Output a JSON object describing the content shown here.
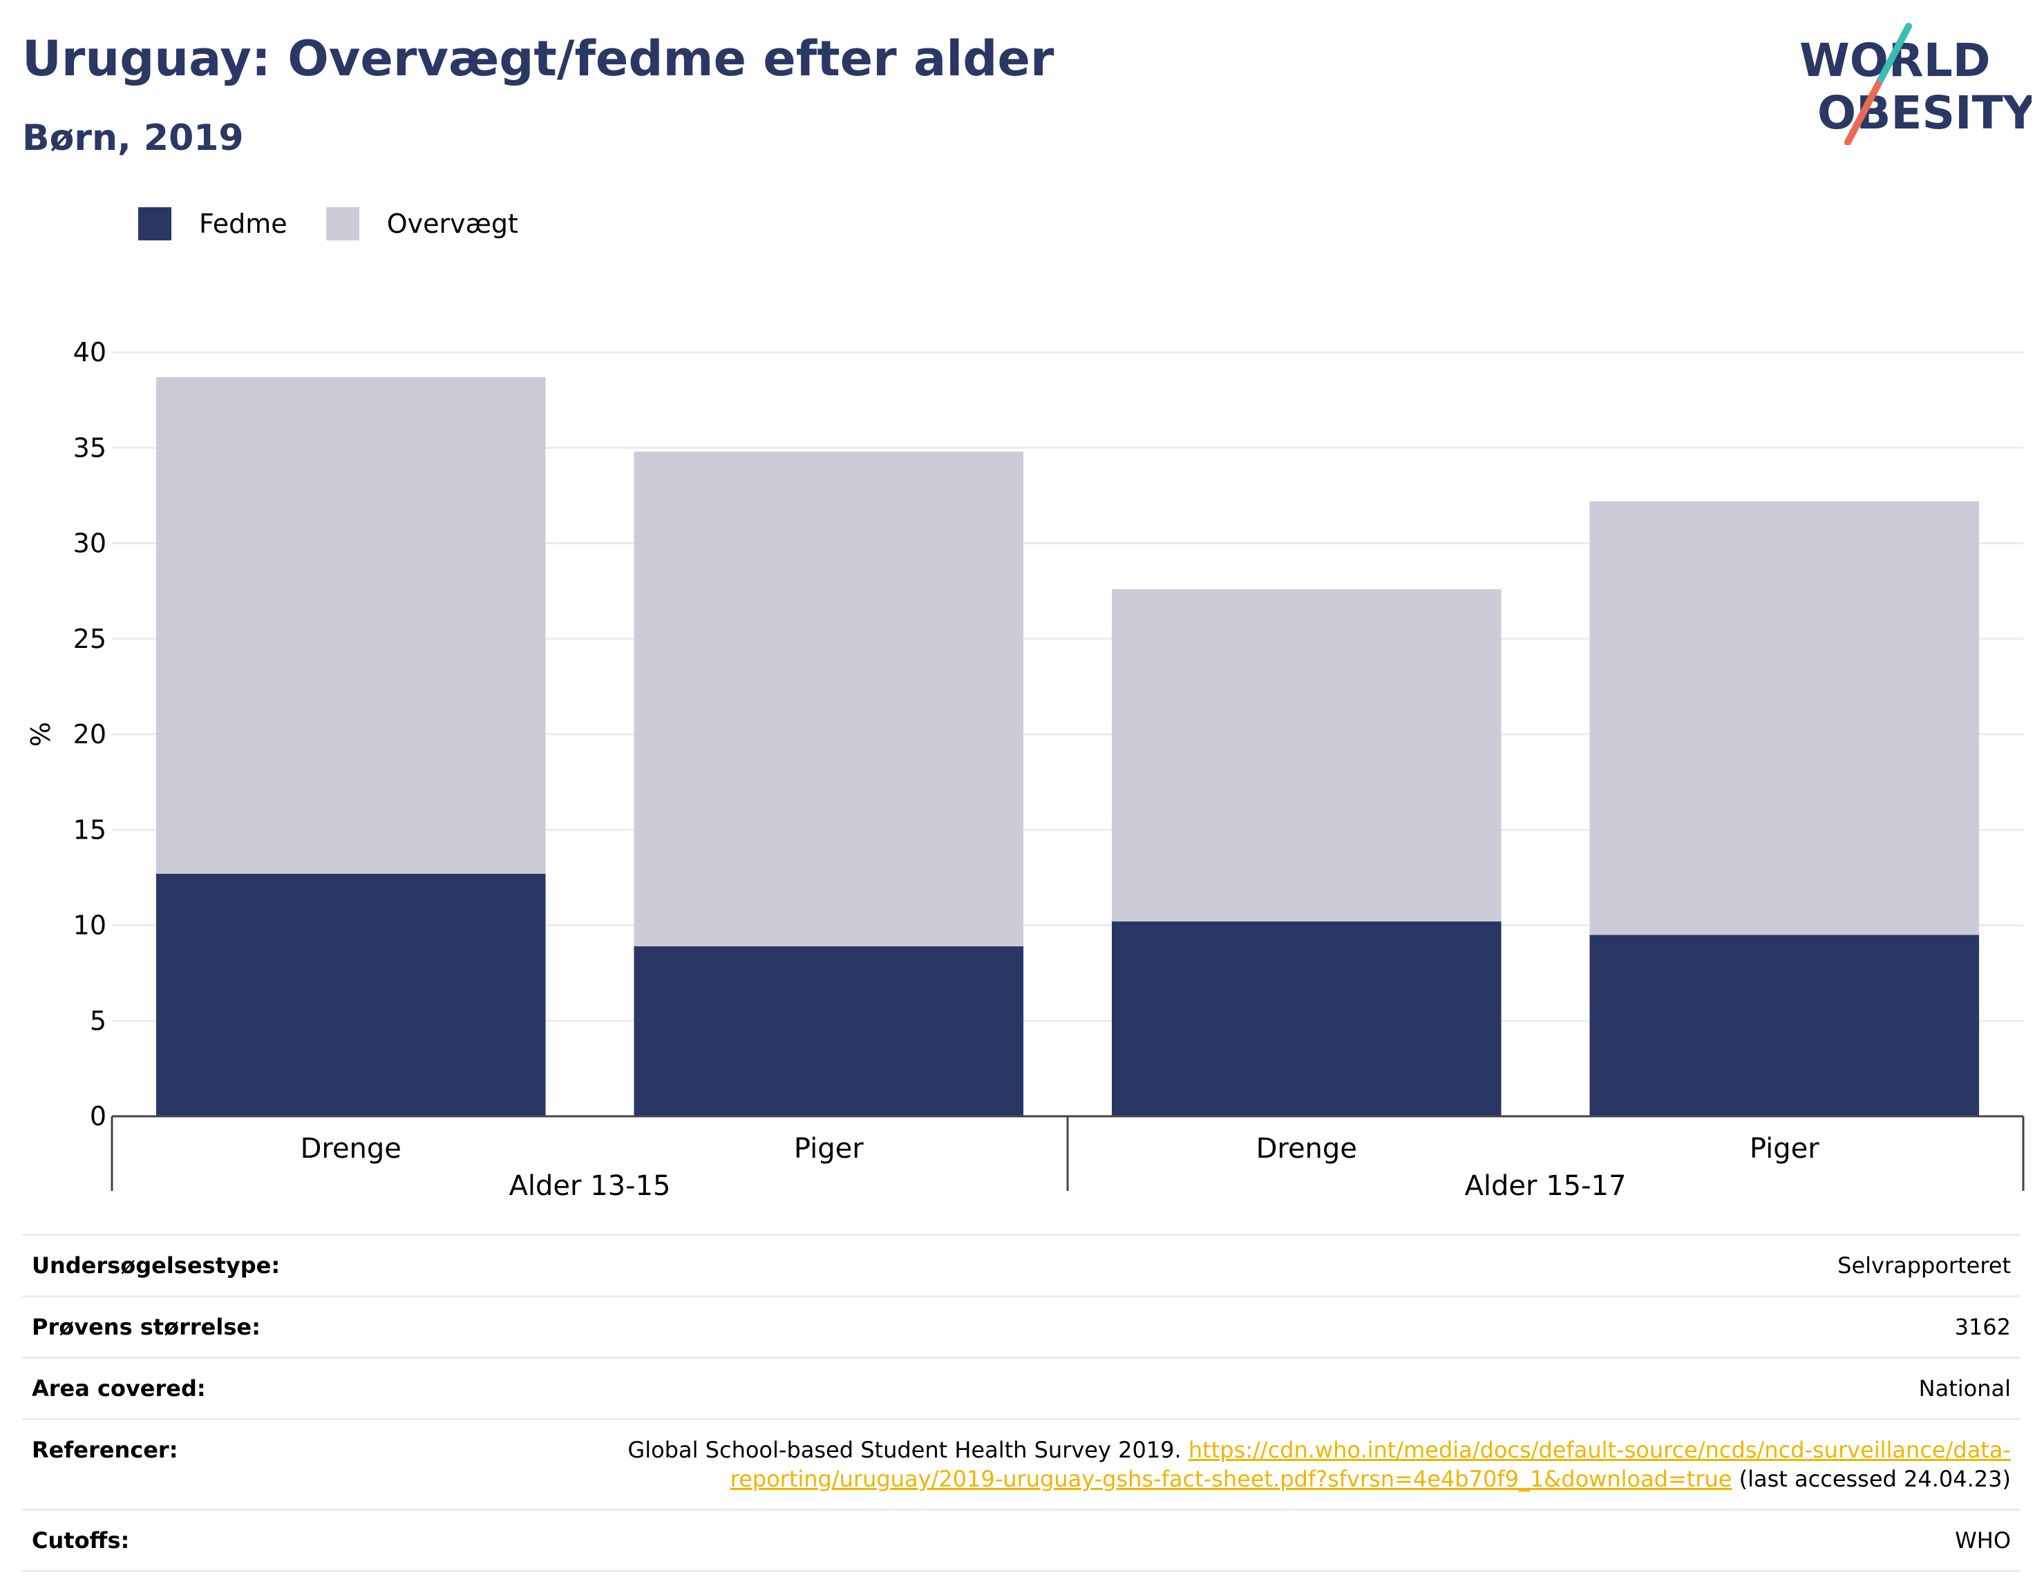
{
  "header": {
    "title": "Uruguay: Overvægt/fedme efter alder",
    "subtitle": "Børn, 2019"
  },
  "logo": {
    "line1": "WORLD",
    "line2": "OBESITY"
  },
  "colors": {
    "fedme": "#2a3765",
    "overvaegt": "#cbccd8",
    "title": "#2b3764",
    "link": "#f0b400",
    "logo_teal": "#3cbcb4",
    "logo_coral": "#ec6a52"
  },
  "chart_data": {
    "type": "bar",
    "stacked": true,
    "ylabel": "%",
    "ylim": [
      0,
      40
    ],
    "yticks": [
      0,
      5,
      10,
      15,
      20,
      25,
      30,
      35,
      40
    ],
    "grid": true,
    "legend_placement": "top-left",
    "groups": [
      "Alder 13-15",
      "Alder 15-17"
    ],
    "categories": [
      "Drenge",
      "Piger",
      "Drenge",
      "Piger"
    ],
    "category_group": [
      0,
      0,
      1,
      1
    ],
    "series": [
      {
        "name": "Fedme",
        "values": [
          12.7,
          8.9,
          10.2,
          9.5
        ]
      },
      {
        "name": "Overvægt",
        "values": [
          26.0,
          25.9,
          17.4,
          22.7
        ]
      }
    ]
  },
  "table": {
    "rows": [
      {
        "key": "Undersøgelsestype:",
        "value": "Selvrapporteret"
      },
      {
        "key": "Prøvens størrelse:",
        "value": "3162"
      },
      {
        "key": "Area covered:",
        "value": "National"
      },
      {
        "key": "Referencer:",
        "value_prefix": "Global School-based Student Health Survey 2019. ",
        "link": "https://cdn.who.int/media/docs/default-source/ncds/ncd-surveillance/data-reporting/uruguay/2019-uruguay-gshs-fact-sheet.pdf?sfvrsn=4e4b70f9_1&download=true",
        "value_suffix": " (last accessed 24.04.23)"
      },
      {
        "key": "Cutoffs:",
        "value": "WHO"
      }
    ]
  }
}
